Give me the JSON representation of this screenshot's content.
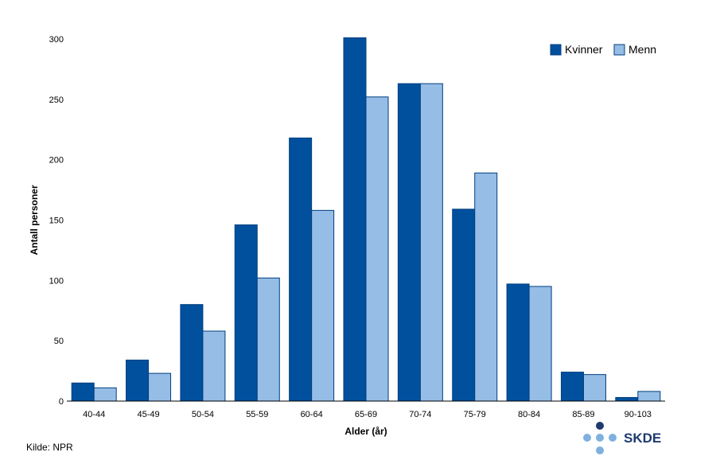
{
  "chart_data": {
    "type": "bar",
    "xlabel": "Alder (år)",
    "ylabel": "Antall personer",
    "ylim": [
      0,
      300
    ],
    "yticks": [
      0,
      50,
      100,
      150,
      200,
      250,
      300
    ],
    "categories": [
      "40-44",
      "45-49",
      "50-54",
      "55-59",
      "60-64",
      "65-69",
      "70-74",
      "75-79",
      "80-84",
      "85-89",
      "90-103"
    ],
    "series": [
      {
        "name": "Kvinner",
        "color": "#00509e",
        "values": [
          15,
          34,
          80,
          146,
          218,
          301,
          263,
          159,
          97,
          24,
          3
        ]
      },
      {
        "name": "Menn",
        "color": "#95bde6",
        "values": [
          11,
          23,
          58,
          102,
          158,
          252,
          263,
          189,
          95,
          22,
          8
        ]
      }
    ],
    "legend_position": "top-right",
    "grid": false
  },
  "footer": {
    "source": "Kilde: NPR",
    "logo_text": "SKDE"
  },
  "colors": {
    "kvinner": "#00509e",
    "menn": "#95bde6",
    "logo_dark": "#1d3b6e",
    "logo_light": "#7fb0e0"
  }
}
